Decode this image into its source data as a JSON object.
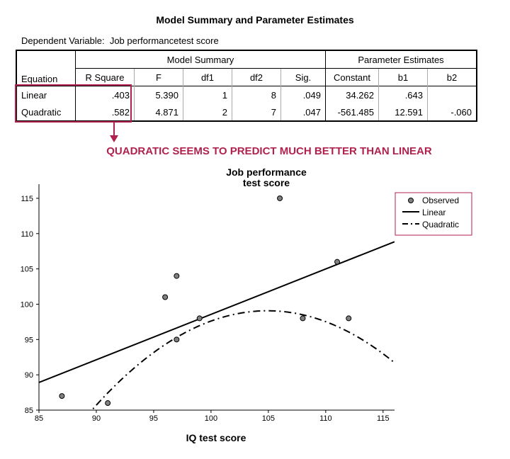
{
  "table": {
    "title": "Model Summary and Parameter Estimates",
    "dependent_label": "Dependent Variable:",
    "dependent_value": "Job performancetest score",
    "group_model_summary": "Model Summary",
    "group_parameter_estimates": "Parameter Estimates",
    "columns": [
      "Equation",
      "R Square",
      "F",
      "df1",
      "df2",
      "Sig.",
      "Constant",
      "b1",
      "b2"
    ],
    "rows": [
      {
        "equation": "Linear",
        "r_square": ".403",
        "f": "5.390",
        "df1": "1",
        "df2": "8",
        "sig": ".049",
        "constant": "34.262",
        "b1": ".643",
        "b2": ""
      },
      {
        "equation": "Quadratic",
        "r_square": ".582",
        "f": "4.871",
        "df1": "2",
        "df2": "7",
        "sig": ".047",
        "constant": "-561.485",
        "b1": "12.591",
        "b2": "-.060"
      }
    ]
  },
  "annotation": "QUADRATIC SEEMS TO PREDICT MUCH BETTER THAN LINEAR",
  "colors": {
    "accent": "#b0224d",
    "marker": "#808080"
  },
  "chart_data": {
    "type": "scatter",
    "title": "Job performance\ntest score",
    "title_lines": [
      "Job performance",
      "test score"
    ],
    "xlabel": "IQ test score",
    "ylabel": "",
    "xlim": [
      85,
      116
    ],
    "ylim": [
      85,
      117
    ],
    "xticks": [
      85,
      90,
      95,
      100,
      105,
      110,
      115
    ],
    "yticks": [
      85,
      90,
      95,
      100,
      105,
      110,
      115
    ],
    "grid": false,
    "legend_position": "top-right",
    "series": [
      {
        "name": "Observed",
        "kind": "points",
        "points": [
          [
            87,
            87
          ],
          [
            91,
            86
          ],
          [
            96,
            101
          ],
          [
            97,
            104
          ],
          [
            97,
            95
          ],
          [
            99,
            98
          ],
          [
            106,
            115
          ],
          [
            108,
            98
          ],
          [
            111,
            106
          ],
          [
            112,
            98
          ]
        ]
      },
      {
        "name": "Linear",
        "kind": "line",
        "constant": 34.262,
        "b1": 0.643
      },
      {
        "name": "Quadratic",
        "kind": "curve",
        "constant": -561.485,
        "b1": 12.591,
        "b2": -0.06
      }
    ]
  }
}
